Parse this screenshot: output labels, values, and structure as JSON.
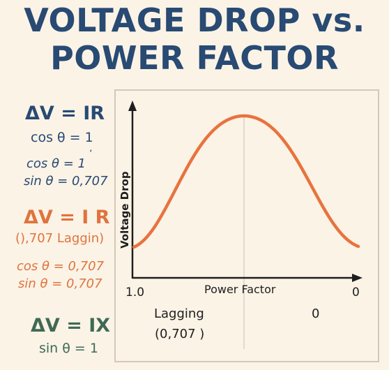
{
  "title": {
    "line1": "VOLTAGE DROP vs.",
    "line2": "POWER FACTOR"
  },
  "equations": {
    "eq1": {
      "main": "ΔV = IR",
      "cos": "cos θ = 1",
      "cos_it": "cos θ = 1",
      "tick": "’",
      "sin_it": "sin θ = 0,707"
    },
    "eq2": {
      "main": "ΔV = I R",
      "note": "(),707 Laggin)",
      "cos": "cos θ = 0,707",
      "sin": "sin θ = 0,707"
    },
    "eq3": {
      "main": "ΔV = IX",
      "sin": "sin θ = 1"
    }
  },
  "chart": {
    "ylabel": "Voltage Drop",
    "xlabel": "Power Factor",
    "x_left": "1.0",
    "x_right": "0",
    "below_left_1": "Lagging",
    "below_left_2": "(0,707 )",
    "below_right": "0"
  },
  "colors": {
    "navy": "#284a73",
    "orange": "#e0733d",
    "green": "#3f6a55",
    "curve": "#e8733e"
  }
}
